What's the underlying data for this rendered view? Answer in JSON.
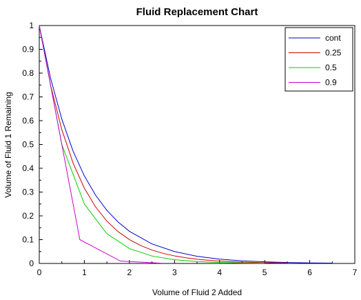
{
  "chart_data": {
    "type": "line",
    "title": "Fluid Replacement Chart",
    "xlabel": "Volume of Fluid 2 Added",
    "ylabel": "Volume of Fluid 1 Remaining",
    "xlim": [
      0,
      7
    ],
    "ylim": [
      0,
      1
    ],
    "x_ticks": [
      "0",
      "1",
      "2",
      "3",
      "4",
      "5",
      "6",
      "7"
    ],
    "y_ticks": [
      "0",
      "0.1",
      "0.2",
      "0.3",
      "0.4",
      "0.5",
      "0.6",
      "0.7",
      "0.8",
      "0.9",
      "1"
    ],
    "grid": false,
    "legend_position": "top-right",
    "series": [
      {
        "name": "cont",
        "color": "#0000cc",
        "x": [
          0,
          0.25,
          0.5,
          0.75,
          1,
          1.25,
          1.5,
          1.75,
          2,
          2.5,
          3,
          3.5,
          4,
          4.5,
          5,
          5.5,
          6,
          6.5
        ],
        "y": [
          1,
          0.779,
          0.607,
          0.472,
          0.368,
          0.287,
          0.223,
          0.174,
          0.135,
          0.082,
          0.05,
          0.03,
          0.018,
          0.011,
          0.007,
          0.004,
          0.002,
          0.0015
        ]
      },
      {
        "name": "0.25",
        "color": "#cc0000",
        "x": [
          0,
          0.25,
          0.5,
          0.75,
          1,
          1.25,
          1.5,
          1.75,
          2,
          2.25,
          2.5,
          2.75,
          3,
          3.25,
          3.5,
          3.75,
          4,
          4.25,
          4.5,
          4.75,
          5,
          5.25,
          5.5
        ],
        "y": [
          1,
          0.75,
          0.5625,
          0.4219,
          0.3164,
          0.2373,
          0.178,
          0.1335,
          0.1001,
          0.0751,
          0.0563,
          0.0422,
          0.0317,
          0.0238,
          0.0178,
          0.0134,
          0.01,
          0.0075,
          0.0056,
          0.0042,
          0.0032,
          0.0024,
          0.0018
        ]
      },
      {
        "name": "0.5",
        "color": "#00cc00",
        "x": [
          0,
          0.5,
          1,
          1.5,
          2,
          2.5,
          3,
          3.5,
          4,
          4.5,
          5
        ],
        "y": [
          1,
          0.5,
          0.25,
          0.125,
          0.0625,
          0.0313,
          0.0156,
          0.0078,
          0.0039,
          0.002,
          0.001
        ]
      },
      {
        "name": "0.9",
        "color": "#cc00cc",
        "x": [
          0,
          0.9,
          1.8,
          2.7
        ],
        "y": [
          1,
          0.1,
          0.01,
          0.001
        ]
      }
    ]
  }
}
